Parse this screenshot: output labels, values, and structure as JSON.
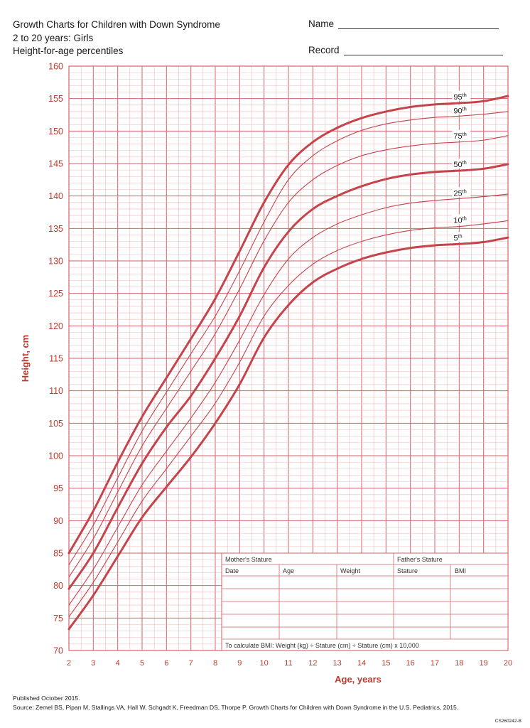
{
  "header": {
    "title_line1": "Growth Charts for Children with Down Syndrome",
    "title_line2": "2 to 20 years: Girls",
    "title_line3": "Height-for-age percentiles",
    "name_label": "Name",
    "record_label": "Record"
  },
  "colors": {
    "accent": "#c0392b",
    "grid_major": "#d9626a",
    "grid_minor": "#f0b8bc",
    "curve": "#c4444c"
  },
  "chart_data": {
    "type": "line",
    "xlabel": "Age, years",
    "ylabel": "Height, cm",
    "xlim": [
      2,
      20
    ],
    "ylim": [
      70,
      160
    ],
    "x_ticks": [
      "2",
      "3",
      "4",
      "5",
      "6",
      "7",
      "8",
      "9",
      "10",
      "11",
      "12",
      "13",
      "14",
      "15",
      "16",
      "17",
      "18",
      "19",
      "20"
    ],
    "y_ticks": [
      "70",
      "75",
      "80",
      "85",
      "90",
      "95",
      "100",
      "105",
      "110",
      "115",
      "120",
      "125",
      "130",
      "135",
      "140",
      "145",
      "150",
      "155",
      "160"
    ],
    "x": [
      2,
      3,
      4,
      5,
      6,
      7,
      8,
      9,
      10,
      11,
      12,
      13,
      14,
      15,
      16,
      17,
      18,
      19,
      20
    ],
    "series": [
      {
        "name": "95th",
        "label_sup": "th",
        "label_base": "95",
        "bold": true,
        "values": [
          85,
          91.5,
          99,
          106,
          112,
          118,
          124.2,
          131.5,
          139,
          144.8,
          148.3,
          150.5,
          152,
          153,
          153.7,
          154.1,
          154.3,
          154.6,
          155.4
        ]
      },
      {
        "name": "90th",
        "label_sup": "th",
        "label_base": "90",
        "bold": false,
        "values": [
          83.2,
          89.3,
          96.6,
          103.8,
          109.8,
          115.7,
          121.5,
          128.5,
          136,
          142.5,
          146.2,
          148.5,
          150.1,
          151.1,
          151.7,
          152.1,
          152.3,
          152.6,
          153
        ]
      },
      {
        "name": "75th",
        "label_sup": "th",
        "label_base": "75",
        "bold": false,
        "values": [
          81.3,
          87.2,
          94.4,
          101.5,
          107.3,
          113,
          118.8,
          125.7,
          133.1,
          139,
          142.5,
          144.7,
          146.2,
          147.1,
          147.7,
          148.1,
          148.3,
          148.6,
          149.3
        ]
      },
      {
        "name": "50th",
        "label_sup": "th",
        "label_base": "50",
        "bold": true,
        "values": [
          79.5,
          85,
          92,
          98.8,
          104.4,
          109.2,
          115,
          121.5,
          129,
          134.5,
          138,
          140,
          141.5,
          142.6,
          143.3,
          143.7,
          143.9,
          144.2,
          144.9
        ]
      },
      {
        "name": "25th",
        "label_sup": "th",
        "label_base": "25",
        "bold": false,
        "values": [
          77,
          82.5,
          89,
          95.5,
          100.7,
          105.8,
          111.3,
          117.8,
          124.8,
          130.3,
          133.6,
          135.7,
          137.1,
          138.2,
          138.9,
          139.3,
          139.6,
          139.9,
          140.3
        ]
      },
      {
        "name": "10th",
        "label_sup": "th",
        "label_base": "10",
        "bold": false,
        "values": [
          75.2,
          80.5,
          86.7,
          93,
          98,
          103,
          108.1,
          114.4,
          121.5,
          126.2,
          129.5,
          131.6,
          133,
          134,
          134.7,
          135.1,
          135.3,
          135.7,
          136.2
        ]
      },
      {
        "name": "5th",
        "label_sup": "th",
        "label_base": "5",
        "bold": true,
        "values": [
          73.3,
          78.5,
          84.5,
          90.5,
          95.2,
          99.8,
          105,
          111,
          118.2,
          123.2,
          126.7,
          128.8,
          130.3,
          131.3,
          132,
          132.4,
          132.6,
          132.9,
          133.6
        ]
      }
    ]
  },
  "stature_table": {
    "mothers_stature": "Mother's Stature",
    "fathers_stature": "Father's Stature",
    "columns": [
      "Date",
      "Age",
      "Weight",
      "Stature",
      "BMI"
    ],
    "bmi_formula": "To calculate BMI: Weight (kg) ÷ Stature (cm) ÷ Stature (cm) x 10,000"
  },
  "footer": {
    "published": "Published October 2015.",
    "source": "Source: Zemel BS, Pipan M, Stallings VA, Hall W, Schgadt K, Freedman DS, Thorpe P. Growth Charts for Children with Down Syndrome in the U.S. Pediatrics, 2015.",
    "code": "CS260242-B"
  }
}
